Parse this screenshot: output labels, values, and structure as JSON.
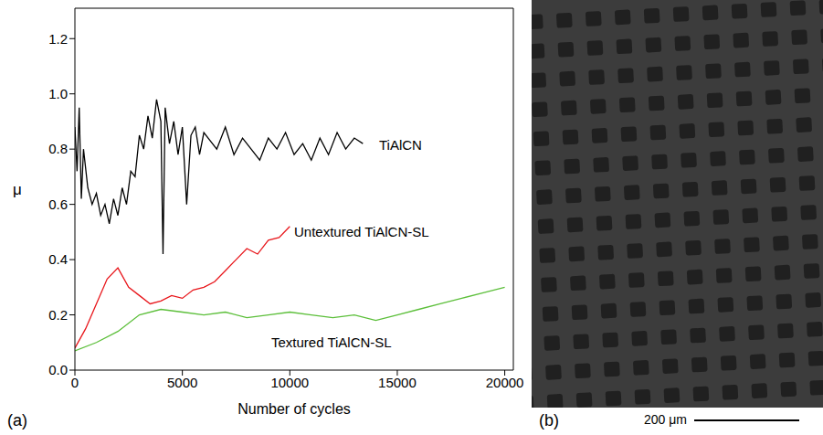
{
  "chart_data": {
    "type": "line",
    "panel_label": "(a)",
    "x_label": "Number of cycles",
    "y_label": "μ",
    "xlim": [
      0,
      20400
    ],
    "xticks": [
      0,
      5000,
      10000,
      15000,
      20000
    ],
    "ylim": [
      0,
      1.31
    ],
    "yticks": [
      {
        "value": 0,
        "label": "0.0"
      },
      0.2,
      0.4,
      0.6,
      0.8,
      {
        "value": 1,
        "label": "1.0"
      },
      1.2
    ],
    "grid": false,
    "series": [
      {
        "name": "TiAlCN",
        "color": "#000000",
        "x": [
          0,
          100,
          200,
          300,
          400,
          600,
          800,
          1000,
          1200,
          1400,
          1600,
          1800,
          2000,
          2200,
          2400,
          2600,
          2800,
          3000,
          3200,
          3400,
          3600,
          3800,
          4000,
          4100,
          4200,
          4400,
          4600,
          4800,
          5000,
          5200,
          5400,
          5600,
          5800,
          6000,
          6300,
          6600,
          7000,
          7400,
          7800,
          8200,
          8600,
          9000,
          9400,
          9800,
          10200,
          10600,
          11000,
          11400,
          11800,
          12200,
          12600,
          13000,
          13400
        ],
        "values": [
          0.88,
          0.72,
          0.95,
          0.62,
          0.8,
          0.66,
          0.6,
          0.64,
          0.56,
          0.6,
          0.53,
          0.62,
          0.56,
          0.66,
          0.6,
          0.72,
          0.7,
          0.85,
          0.8,
          0.92,
          0.84,
          0.98,
          0.9,
          0.42,
          0.95,
          0.82,
          0.9,
          0.78,
          0.88,
          0.6,
          0.85,
          0.88,
          0.78,
          0.86,
          0.83,
          0.8,
          0.88,
          0.78,
          0.84,
          0.8,
          0.76,
          0.84,
          0.8,
          0.86,
          0.78,
          0.82,
          0.76,
          0.84,
          0.78,
          0.86,
          0.8,
          0.84,
          0.82
        ]
      },
      {
        "name": "Untextured TiAlCN-SL",
        "color": "#e8161b",
        "x": [
          0,
          500,
          1000,
          1500,
          2000,
          2500,
          3000,
          3500,
          4000,
          4500,
          5000,
          5500,
          6000,
          6500,
          7000,
          7500,
          8000,
          8500,
          9000,
          9500,
          10000
        ],
        "values": [
          0.08,
          0.15,
          0.24,
          0.33,
          0.37,
          0.3,
          0.27,
          0.24,
          0.25,
          0.27,
          0.26,
          0.29,
          0.3,
          0.32,
          0.36,
          0.4,
          0.44,
          0.42,
          0.47,
          0.48,
          0.52
        ]
      },
      {
        "name": "Textured TiAlCN-SL",
        "color": "#5cbf3a",
        "x": [
          0,
          1000,
          2000,
          3000,
          4000,
          5000,
          6000,
          7000,
          8000,
          9000,
          10000,
          11000,
          12000,
          13000,
          14000,
          15000,
          16000,
          17000,
          18000,
          19000,
          20000
        ],
        "values": [
          0.07,
          0.1,
          0.14,
          0.2,
          0.22,
          0.21,
          0.2,
          0.21,
          0.19,
          0.2,
          0.21,
          0.2,
          0.19,
          0.2,
          0.18,
          0.2,
          0.22,
          0.24,
          0.26,
          0.28,
          0.3
        ]
      }
    ]
  },
  "micrograph": {
    "panel_label": "(b)",
    "scale_bar": "200 μm"
  }
}
